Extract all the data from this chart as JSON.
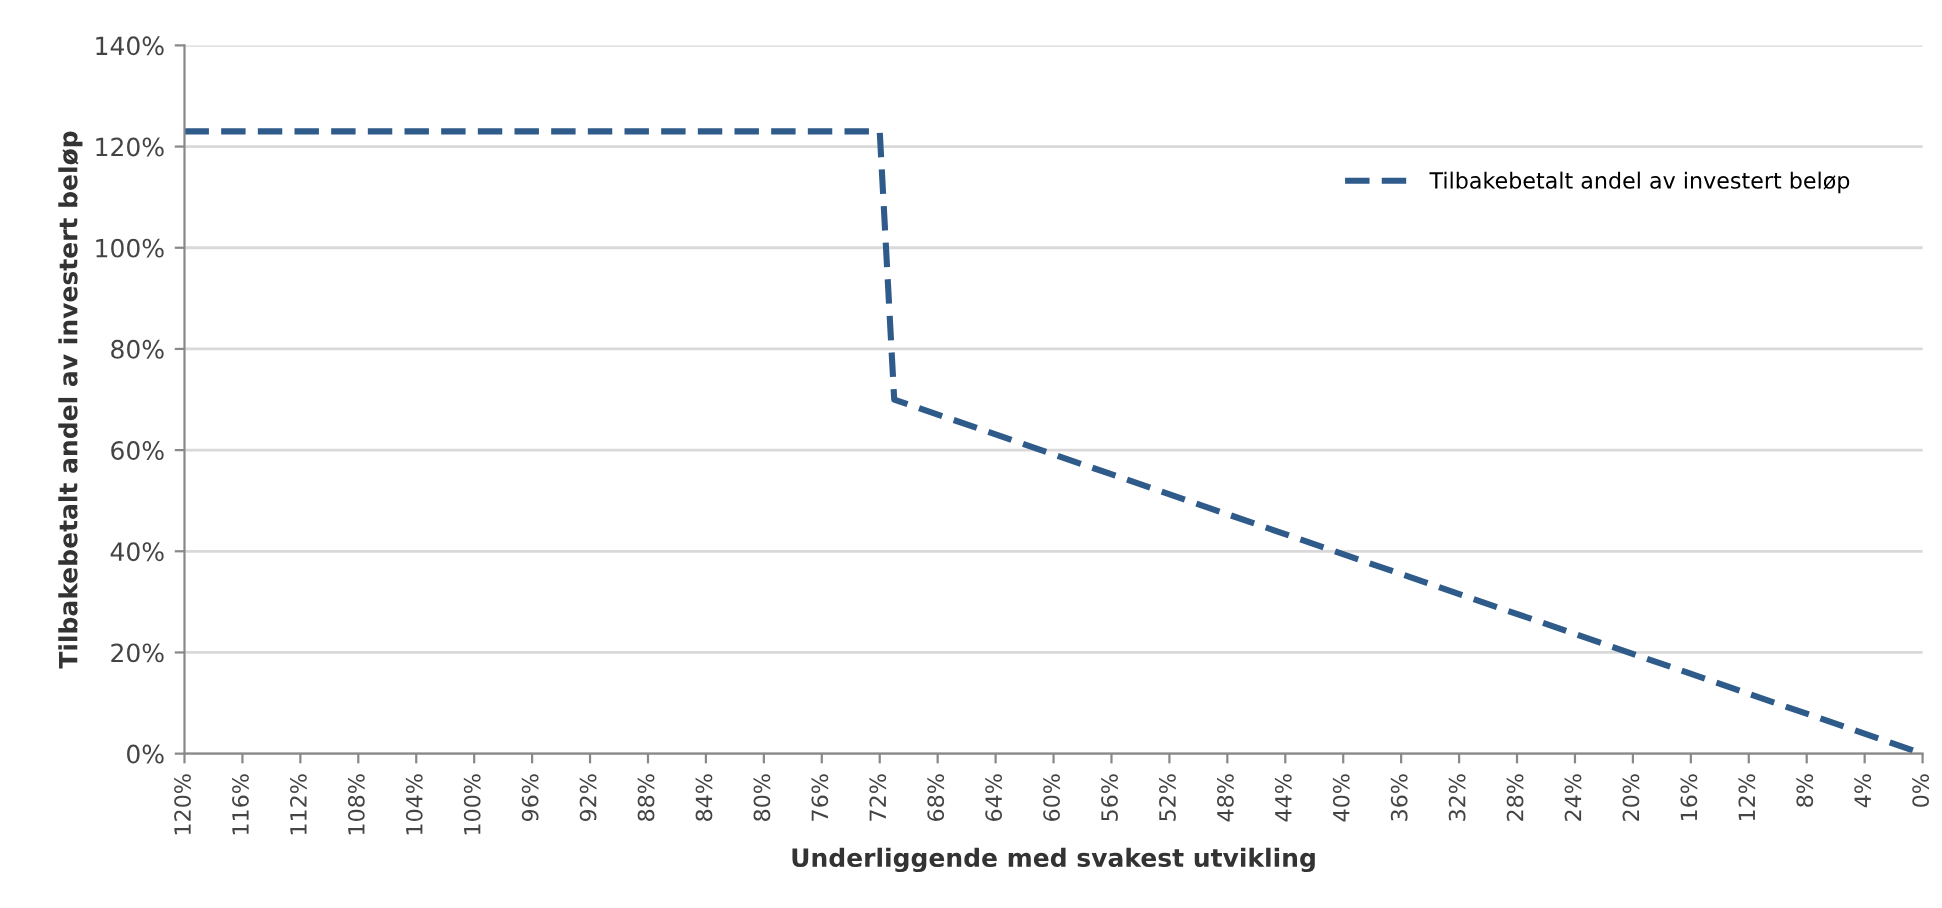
{
  "chart_data": {
    "type": "line",
    "xlabel": "Underliggende med svakest utvikling",
    "ylabel": "Tilbakebetalt andel av investert beløp",
    "x": [
      120,
      72,
      71,
      0
    ],
    "series": [
      {
        "name": "Tilbakebetalt andel av investert beløp",
        "color": "#2f5b8a",
        "values": [
          123,
          123,
          70,
          0
        ]
      }
    ],
    "xlim": [
      120,
      0
    ],
    "xticks": [
      {
        "value": 120,
        "label": "120%"
      },
      {
        "value": 116,
        "label": "116%"
      },
      {
        "value": 112,
        "label": "112%"
      },
      {
        "value": 108,
        "label": "108%"
      },
      {
        "value": 104,
        "label": "104%"
      },
      {
        "value": 100,
        "label": "100%"
      },
      {
        "value": 96,
        "label": "96%"
      },
      {
        "value": 92,
        "label": "92%"
      },
      {
        "value": 88,
        "label": "88%"
      },
      {
        "value": 84,
        "label": "84%"
      },
      {
        "value": 80,
        "label": "80%"
      },
      {
        "value": 76,
        "label": "76%"
      },
      {
        "value": 72,
        "label": "72%"
      },
      {
        "value": 68,
        "label": "68%"
      },
      {
        "value": 64,
        "label": "64%"
      },
      {
        "value": 60,
        "label": "60%"
      },
      {
        "value": 56,
        "label": "56%"
      },
      {
        "value": 52,
        "label": "52%"
      },
      {
        "value": 48,
        "label": "48%"
      },
      {
        "value": 44,
        "label": "44%"
      },
      {
        "value": 40,
        "label": "40%"
      },
      {
        "value": 36,
        "label": "36%"
      },
      {
        "value": 32,
        "label": "32%"
      },
      {
        "value": 28,
        "label": "28%"
      },
      {
        "value": 24,
        "label": "24%"
      },
      {
        "value": 20,
        "label": "20%"
      },
      {
        "value": 16,
        "label": "16%"
      },
      {
        "value": 12,
        "label": "12%"
      },
      {
        "value": 8,
        "label": "8%"
      },
      {
        "value": 4,
        "label": "4%"
      },
      {
        "value": 0,
        "label": "0%"
      }
    ],
    "ylim": [
      0,
      140
    ],
    "yticks": [
      {
        "value": 0,
        "label": "0%"
      },
      {
        "value": 20,
        "label": "20%"
      },
      {
        "value": 40,
        "label": "40%"
      },
      {
        "value": 60,
        "label": "60%"
      },
      {
        "value": 80,
        "label": "80%"
      },
      {
        "value": 100,
        "label": "100%"
      },
      {
        "value": 120,
        "label": "120%"
      },
      {
        "value": 140,
        "label": "140%"
      }
    ],
    "grid": "y",
    "legend": "top right",
    "line_style": "dashed",
    "marker": "none"
  }
}
